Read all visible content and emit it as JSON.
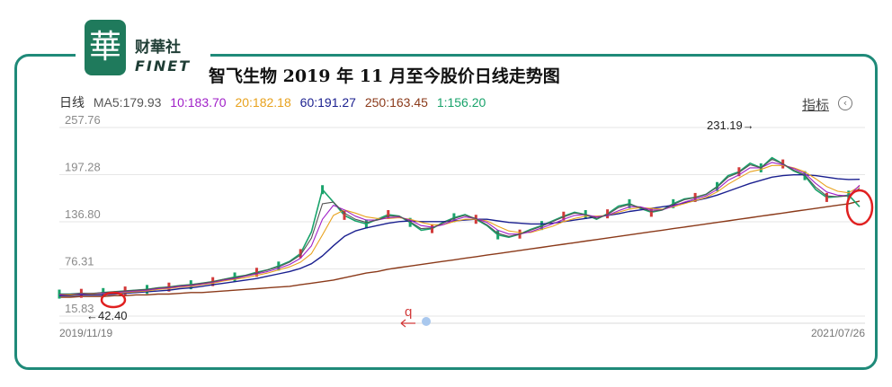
{
  "brand": {
    "badge_char": "華",
    "name_cn": "财華社",
    "name_en": "FINET"
  },
  "title": "智飞生物 2019 年 11 月至今股价日线走势图",
  "ma_header": {
    "period": "日线",
    "items": [
      {
        "text": "MA5:179.93",
        "color": "#555555"
      },
      {
        "text": "10:183.70",
        "color": "#a020c8"
      },
      {
        "text": "20:182.18",
        "color": "#e8a21e"
      },
      {
        "text": "60:191.27",
        "color": "#1a1f8f"
      },
      {
        "text": "250:163.45",
        "color": "#8b3a1a"
      },
      {
        "text": "1:156.20",
        "color": "#19a36b"
      }
    ]
  },
  "indicator_label": "指标",
  "indicator_icon": "chevron-left-circle-icon",
  "chart_data": {
    "type": "line",
    "y_ticks": [
      "257.76",
      "197.28",
      "136.80",
      "76.31",
      "15.83"
    ],
    "ylim": [
      15.83,
      257.76
    ],
    "x_start_label": "2019/11/19",
    "x_end_label": "2021/07/26",
    "annotations": [
      {
        "text": "231.19→",
        "x": 0.86,
        "y": 231.19
      },
      {
        "text": "←42.40",
        "x": 0.06,
        "y": 42.4
      },
      {
        "text": "q",
        "x": 0.44,
        "y": 22
      }
    ],
    "series": [
      {
        "role": "price",
        "color": "#19a36b",
        "y": [
          44,
          44,
          45,
          44,
          46,
          47,
          48,
          49,
          50,
          52,
          53,
          55,
          56,
          58,
          60,
          63,
          66,
          68,
          72,
          75,
          80,
          86,
          96,
          124,
          178,
          162,
          145,
          138,
          134,
          140,
          146,
          144,
          136,
          126,
          128,
          136,
          142,
          146,
          140,
          132,
          120,
          117,
          121,
          127,
          132,
          138,
          144,
          149,
          146,
          140,
          147,
          157,
          160,
          154,
          149,
          152,
          160,
          166,
          168,
          172,
          182,
          196,
          201,
          212,
          206,
          219,
          211,
          202,
          196,
          178,
          168,
          169,
          171,
          156
        ]
      },
      {
        "role": "ma5",
        "color": "#555555",
        "y": [
          44,
          44,
          45,
          45,
          46,
          47,
          48,
          49,
          50,
          52,
          53,
          55,
          56,
          58,
          60,
          63,
          65,
          68,
          71,
          75,
          79,
          85,
          94,
          116,
          160,
          162,
          148,
          140,
          136,
          139,
          144,
          144,
          137,
          128,
          129,
          135,
          141,
          145,
          141,
          133,
          122,
          118,
          121,
          126,
          131,
          137,
          143,
          148,
          146,
          141,
          146,
          155,
          159,
          155,
          150,
          152,
          159,
          165,
          168,
          172,
          181,
          194,
          200,
          210,
          206,
          217,
          211,
          203,
          197,
          181,
          170,
          169,
          170,
          179.93
        ]
      },
      {
        "role": "ma10",
        "color": "#a020c8",
        "y": [
          43,
          44,
          44,
          45,
          45,
          46,
          47,
          48,
          49,
          51,
          52,
          54,
          55,
          57,
          59,
          62,
          64,
          67,
          70,
          73,
          77,
          82,
          90,
          106,
          140,
          158,
          152,
          144,
          139,
          139,
          142,
          143,
          139,
          132,
          130,
          133,
          139,
          143,
          141,
          136,
          126,
          121,
          121,
          124,
          129,
          134,
          140,
          145,
          146,
          143,
          145,
          151,
          156,
          156,
          152,
          152,
          157,
          162,
          166,
          170,
          178,
          190,
          197,
          206,
          206,
          213,
          210,
          205,
          199,
          186,
          175,
          171,
          170,
          183.7
        ]
      },
      {
        "role": "ma20",
        "color": "#e8a21e",
        "y": [
          43,
          43,
          44,
          44,
          45,
          45,
          46,
          47,
          48,
          50,
          51,
          53,
          54,
          56,
          58,
          61,
          63,
          65,
          68,
          71,
          75,
          79,
          85,
          96,
          120,
          145,
          152,
          148,
          143,
          141,
          141,
          142,
          140,
          136,
          133,
          133,
          137,
          140,
          140,
          138,
          131,
          125,
          123,
          123,
          127,
          131,
          137,
          141,
          144,
          144,
          145,
          149,
          153,
          155,
          154,
          153,
          156,
          160,
          164,
          168,
          175,
          185,
          193,
          201,
          204,
          209,
          209,
          206,
          201,
          192,
          182,
          176,
          174,
          182.18
        ]
      },
      {
        "role": "ma60",
        "color": "#1a1f8f",
        "y": [
          42,
          42,
          43,
          43,
          43,
          44,
          45,
          46,
          47,
          48,
          49,
          51,
          52,
          54,
          56,
          58,
          60,
          62,
          64,
          67,
          70,
          73,
          77,
          83,
          93,
          106,
          118,
          125,
          129,
          132,
          135,
          137,
          138,
          137,
          137,
          137,
          138,
          139,
          140,
          140,
          138,
          136,
          135,
          134,
          134,
          135,
          137,
          139,
          141,
          143,
          145,
          147,
          150,
          152,
          154,
          156,
          158,
          161,
          164,
          167,
          171,
          176,
          181,
          186,
          190,
          194,
          196,
          197,
          197,
          196,
          194,
          192,
          191,
          191.27
        ]
      },
      {
        "role": "ma250",
        "color": "#8b3a1a",
        "y": [
          40,
          40,
          41,
          41,
          41,
          42,
          42,
          43,
          43,
          44,
          44,
          45,
          46,
          46,
          47,
          48,
          49,
          50,
          51,
          52,
          53,
          54,
          56,
          58,
          60,
          62,
          65,
          68,
          71,
          73,
          76,
          78,
          80,
          82,
          84,
          86,
          88,
          90,
          92,
          94,
          96,
          98,
          100,
          102,
          104,
          106,
          108,
          110,
          112,
          114,
          116,
          118,
          120,
          122,
          124,
          126,
          128,
          130,
          132,
          134,
          136,
          138,
          140,
          142,
          144,
          146,
          148,
          150,
          152,
          154,
          156,
          158,
          160,
          163.45
        ]
      }
    ]
  }
}
